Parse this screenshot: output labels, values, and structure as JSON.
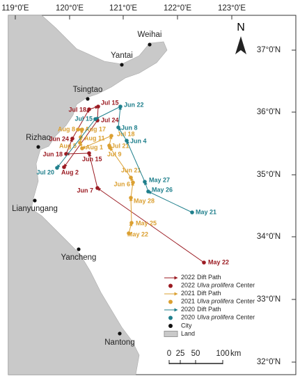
{
  "axes": {
    "lon_labels": [
      "119°0'E",
      "120°0'E",
      "121°0'E",
      "122°0'E",
      "123°0'E"
    ],
    "lat_labels": [
      "37°0'N",
      "36°0'N",
      "35°0'N",
      "34°0'N",
      "33°0'N",
      "32°0'N"
    ]
  },
  "compass": "N",
  "cities": [
    "Weihai",
    "Yantai",
    "Tsingtao",
    "Rizhao",
    "Lianyungang",
    "Yancheng",
    "Nantong"
  ],
  "tracks": [
    {
      "year": "2022",
      "color": "#9b1b22",
      "dates": [
        "May 22",
        "Jun 7",
        "Jun 15",
        "Jun 18",
        "Jun 24",
        "Jul 18",
        "Jul 15",
        "Jul 24",
        "Aug 2"
      ]
    },
    {
      "year": "2021",
      "color": "#dba032",
      "dates": [
        "May 22",
        "May 25",
        "May 28",
        "Jun 6",
        "Jun 21",
        "Jul 9",
        "Jul 21",
        "Jul 18",
        "Aug 1",
        "Aug 5",
        "Aug 11",
        "Aug 17",
        "Aug 8"
      ]
    },
    {
      "year": "2020",
      "color": "#1f7f8c",
      "dates": [
        "May 21",
        "May 26",
        "May 27",
        "Jun 4",
        "Jun 8",
        "Jun 22",
        "Jul 15",
        "Jul 20"
      ]
    }
  ],
  "legend": {
    "path_suffix": "Dift Path",
    "species": "Ulva prolifera",
    "center_suffix": "Center",
    "city": "City",
    "land": "Land"
  },
  "scale": {
    "labels": [
      0,
      25,
      50,
      100
    ],
    "unit": "km"
  }
}
